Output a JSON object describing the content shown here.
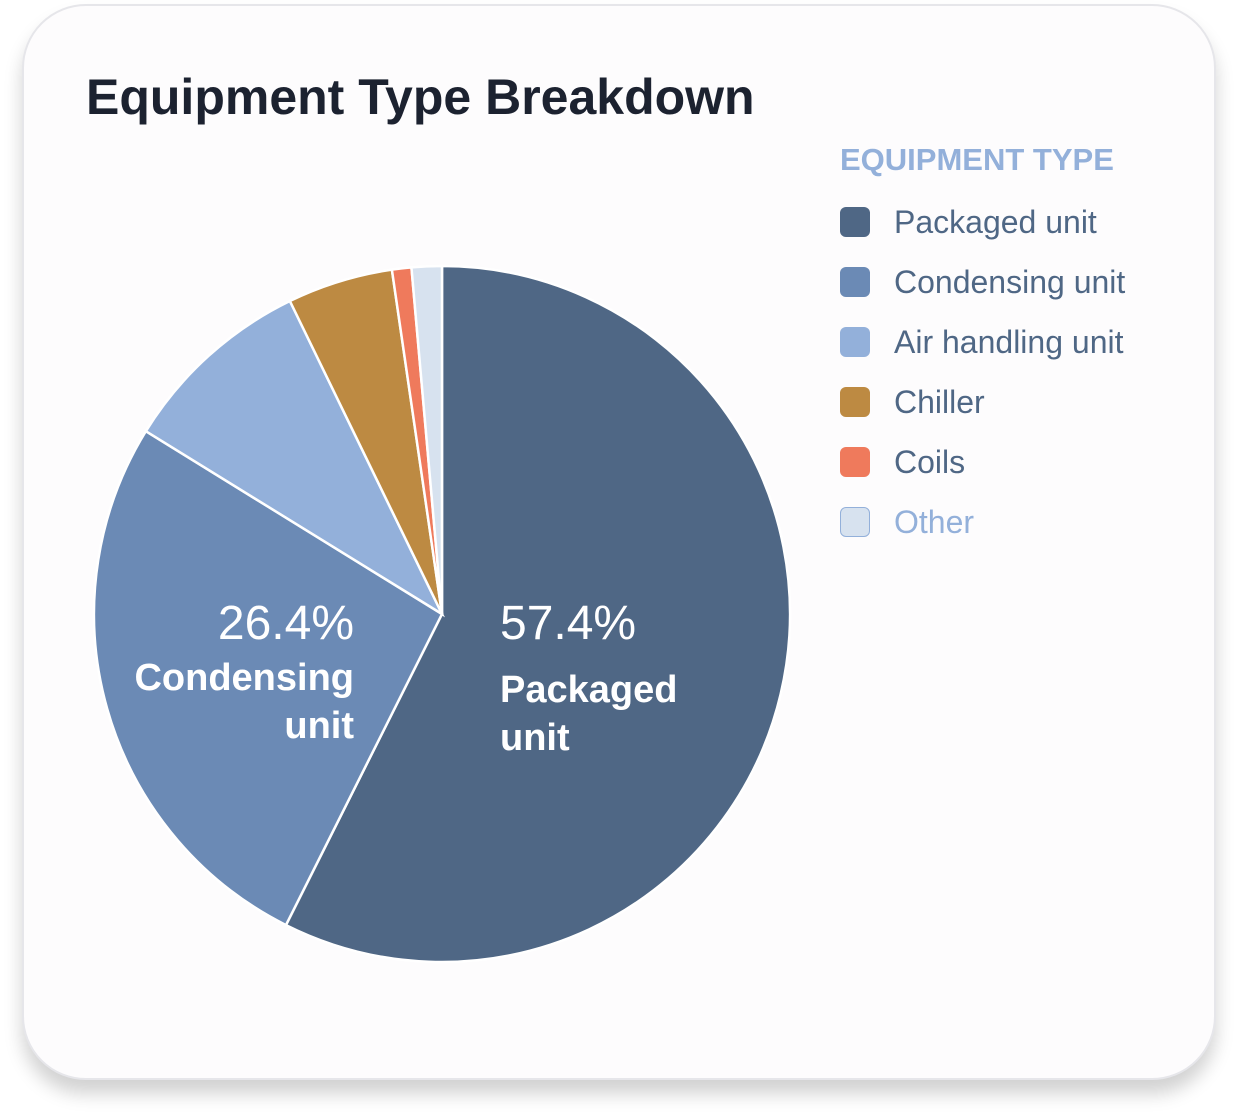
{
  "chart_data": {
    "type": "pie",
    "title": "Equipment Type Breakdown",
    "legend_title": "EQUIPMENT TYPE",
    "legend": "right",
    "categories": [
      "Packaged unit",
      "Condensing unit",
      "Air handling unit",
      "Chiller",
      "Coils",
      "Other"
    ],
    "values": [
      57.4,
      26.4,
      9.0,
      4.9,
      0.9,
      1.4
    ],
    "value_labels": [
      "57.4%",
      "26.4%",
      null,
      null,
      null,
      null
    ],
    "colors": [
      "#4f6785",
      "#6b8ab5",
      "#93b0da",
      "#bd8a42",
      "#ef7a5c",
      "#d7e2ef"
    ]
  }
}
